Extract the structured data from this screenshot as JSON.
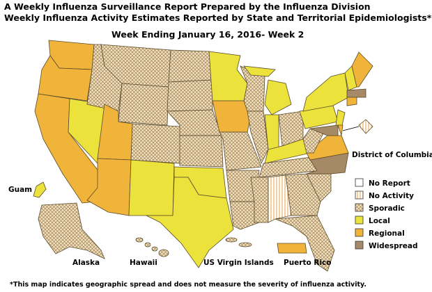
{
  "title": "A Weekly Influenza Surveillance Report Prepared by the Influenza Division",
  "subtitle": "Weekly Influenza Activity Estimates Reported by State and Territorial Epidemiologists*",
  "week": "Week Ending January 16, 2016- Week 2",
  "labels": {
    "dc": "District of Columbia",
    "guam": "Guam",
    "alaska": "Alaska",
    "hawaii": "Hawaii",
    "usvi": "US Virgin Islands",
    "pr": "Puerto Rico"
  },
  "legend": [
    "No Report",
    "No Activity",
    "Sporadic",
    "Local",
    "Regional",
    "Widespread"
  ],
  "footnote": "*This map indicates geographic spread and does not measure the severity of influenza activity."
}
